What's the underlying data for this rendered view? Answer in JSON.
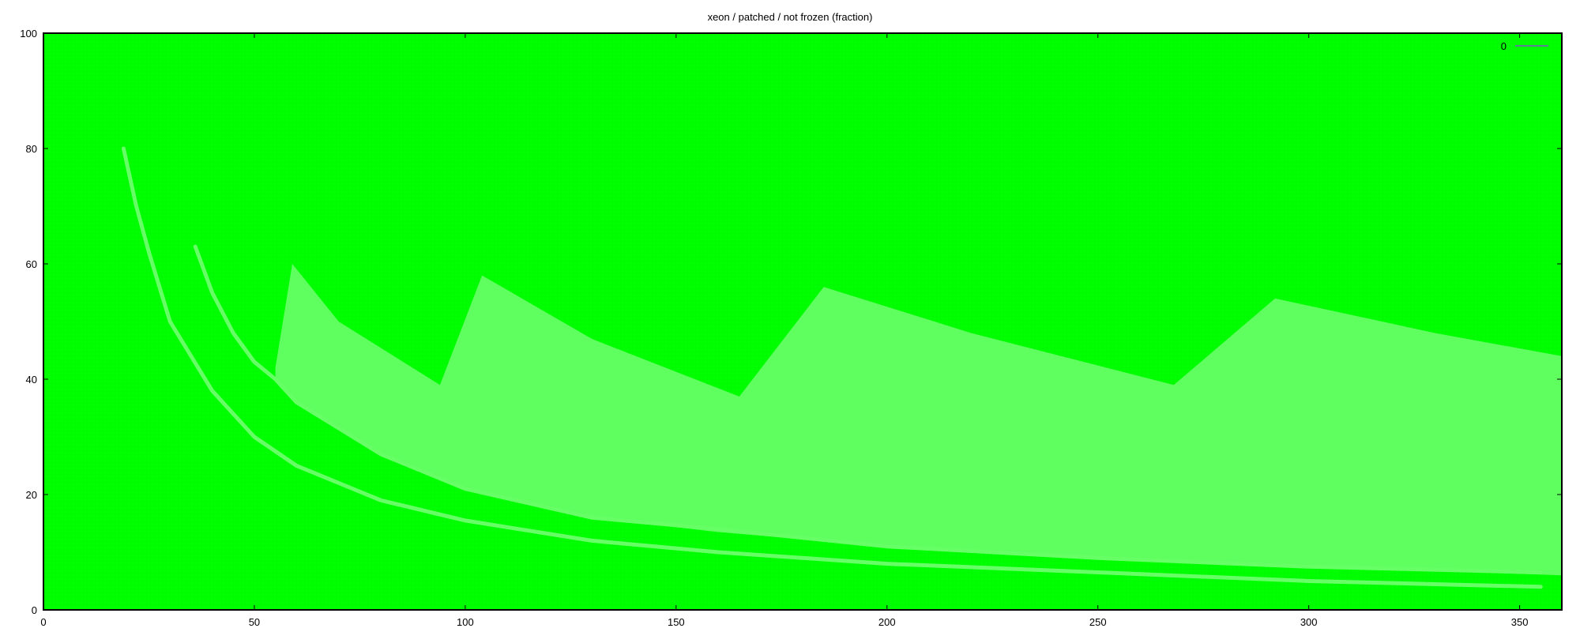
{
  "chart_data": {
    "type": "heatmap",
    "title": "xeon / patched / not frozen (fraction)",
    "xlabel": "",
    "ylabel": "",
    "xlim": [
      0,
      360
    ],
    "ylim": [
      0,
      100
    ],
    "xticks": [
      0,
      50,
      100,
      150,
      200,
      250,
      300,
      350
    ],
    "yticks": [
      0,
      20,
      40,
      60,
      80,
      100
    ],
    "legend": {
      "position": "top-right",
      "entries": [
        "0"
      ]
    },
    "colors": {
      "background": "#00ff00",
      "band": "#66ff66",
      "legend_line": "#7b55c7",
      "frame": "#000000"
    },
    "curves": [
      {
        "name_hidden": true,
        "x": [
          19,
          22,
          25,
          30,
          40,
          50,
          60,
          80,
          100,
          130,
          160,
          200,
          250,
          300,
          355
        ],
        "y": [
          80,
          70,
          62,
          50,
          38,
          30,
          25,
          19,
          15.5,
          12,
          10,
          8,
          6.5,
          5,
          4
        ]
      },
      {
        "name_hidden": true,
        "x": [
          36,
          40,
          45,
          50,
          55,
          60,
          80,
          100,
          130,
          160,
          200,
          250,
          300,
          355
        ],
        "y": [
          63,
          55,
          48,
          43,
          40,
          36,
          27,
          21,
          16,
          14,
          11,
          9,
          7.5,
          6.5
        ]
      }
    ],
    "band": {
      "upper": {
        "x": [
          55,
          59,
          70,
          94,
          104,
          130,
          165,
          185,
          220,
          268,
          292,
          330,
          360
        ],
        "y": [
          42,
          60,
          50,
          39,
          58,
          47,
          37,
          56,
          48,
          39,
          54,
          48,
          44
        ]
      },
      "lower": {
        "x": [
          55,
          60,
          80,
          100,
          130,
          160,
          200,
          250,
          300,
          360
        ],
        "y": [
          40,
          36,
          27,
          21,
          16,
          13.5,
          11,
          9,
          7.5,
          6
        ]
      }
    }
  }
}
